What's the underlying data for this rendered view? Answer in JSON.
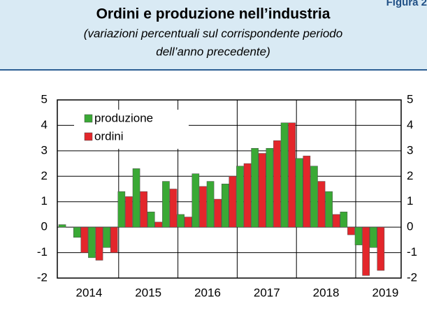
{
  "figure_label": "Figura 2",
  "chart_data": {
    "type": "bar",
    "title": "Ordini e produzione nell’industria",
    "subtitle": [
      "(variazioni percentuali sul corrispondente periodo",
      "dell’anno precedente)"
    ],
    "categories": [
      null,
      null,
      null,
      null,
      null,
      null,
      null,
      null,
      null,
      null,
      null,
      null,
      null,
      null,
      null,
      null,
      null,
      null,
      null,
      null,
      null,
      null
    ],
    "year_labels": [
      "2014",
      "2015",
      "2016",
      "2017",
      "2018",
      "2019"
    ],
    "series": [
      {
        "name": "produzione",
        "color": "#3aa935",
        "values": [
          0.1,
          -0.4,
          -1.2,
          -0.8,
          1.4,
          2.3,
          0.6,
          1.8,
          0.5,
          2.1,
          1.8,
          1.7,
          2.4,
          3.1,
          3.1,
          4.1,
          2.7,
          2.4,
          1.4,
          0.6,
          -0.7,
          -0.8
        ]
      },
      {
        "name": "ordini",
        "color": "#e3262b",
        "values": [
          null,
          -1.0,
          -1.3,
          -1.0,
          1.2,
          1.4,
          0.2,
          1.5,
          0.4,
          1.6,
          1.1,
          2.0,
          2.5,
          2.9,
          3.4,
          4.1,
          2.8,
          1.8,
          0.5,
          -0.3,
          -1.9,
          -1.7
        ]
      }
    ],
    "ylim": [
      -2,
      5
    ],
    "yticks": [
      -2,
      -1,
      0,
      1,
      2,
      3,
      4,
      5
    ],
    "y2lim": [
      -2,
      5
    ],
    "y2ticks": [
      -2,
      -1,
      0,
      1,
      2,
      3,
      4,
      5
    ],
    "grid": true,
    "legend": "upper left"
  }
}
